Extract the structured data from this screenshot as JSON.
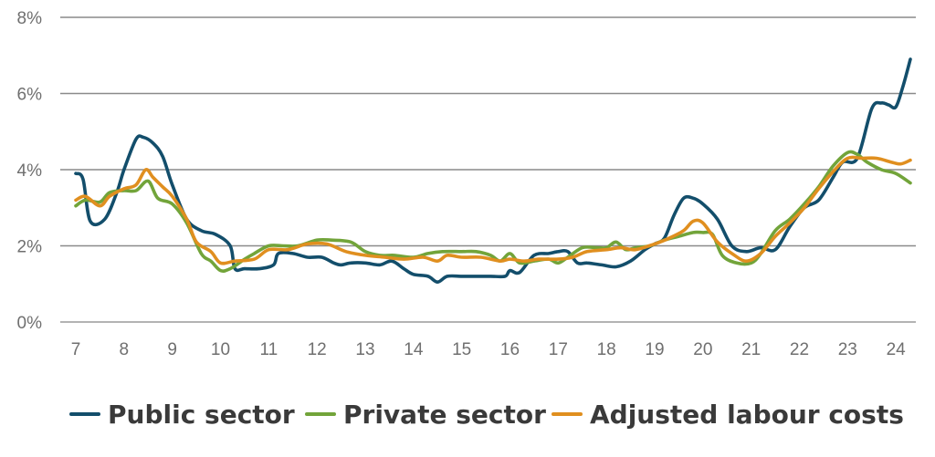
{
  "chart_data": {
    "type": "line",
    "xlabel": "",
    "ylabel": "",
    "xlim": [
      7,
      24.3
    ],
    "ylim": [
      0,
      8
    ],
    "x_ticks": [
      7,
      8,
      9,
      10,
      11,
      12,
      13,
      14,
      15,
      16,
      17,
      18,
      19,
      20,
      21,
      22,
      23,
      24
    ],
    "x_tick_labels": [
      "7",
      "8",
      "9",
      "10",
      "11",
      "12",
      "13",
      "14",
      "15",
      "16",
      "17",
      "18",
      "19",
      "20",
      "21",
      "22",
      "23",
      "24"
    ],
    "y_ticks": [
      0,
      2,
      4,
      6,
      8
    ],
    "y_tick_labels": [
      "0%",
      "2%",
      "4%",
      "6%",
      "8%"
    ],
    "grid": "horizontal",
    "legend_position": "bottom",
    "series": [
      {
        "name": "Public sector",
        "color": "#134e6b",
        "points": [
          [
            7.0,
            3.9
          ],
          [
            7.15,
            3.75
          ],
          [
            7.3,
            2.65
          ],
          [
            7.6,
            2.7
          ],
          [
            7.85,
            3.4
          ],
          [
            8.0,
            4.0
          ],
          [
            8.25,
            4.8
          ],
          [
            8.4,
            4.85
          ],
          [
            8.6,
            4.7
          ],
          [
            8.8,
            4.35
          ],
          [
            9.0,
            3.6
          ],
          [
            9.3,
            2.7
          ],
          [
            9.6,
            2.4
          ],
          [
            9.9,
            2.3
          ],
          [
            10.2,
            2.0
          ],
          [
            10.3,
            1.4
          ],
          [
            10.5,
            1.4
          ],
          [
            10.8,
            1.4
          ],
          [
            11.1,
            1.5
          ],
          [
            11.2,
            1.8
          ],
          [
            11.5,
            1.8
          ],
          [
            11.8,
            1.7
          ],
          [
            12.1,
            1.7
          ],
          [
            12.35,
            1.55
          ],
          [
            12.5,
            1.5
          ],
          [
            12.7,
            1.55
          ],
          [
            13.0,
            1.55
          ],
          [
            13.3,
            1.5
          ],
          [
            13.55,
            1.6
          ],
          [
            13.8,
            1.4
          ],
          [
            14.0,
            1.25
          ],
          [
            14.3,
            1.2
          ],
          [
            14.5,
            1.05
          ],
          [
            14.7,
            1.2
          ],
          [
            15.0,
            1.2
          ],
          [
            15.3,
            1.2
          ],
          [
            15.6,
            1.2
          ],
          [
            15.9,
            1.2
          ],
          [
            16.0,
            1.35
          ],
          [
            16.2,
            1.3
          ],
          [
            16.5,
            1.75
          ],
          [
            16.8,
            1.8
          ],
          [
            17.0,
            1.85
          ],
          [
            17.2,
            1.85
          ],
          [
            17.4,
            1.55
          ],
          [
            17.6,
            1.55
          ],
          [
            17.9,
            1.5
          ],
          [
            18.2,
            1.45
          ],
          [
            18.5,
            1.6
          ],
          [
            18.8,
            1.9
          ],
          [
            19.0,
            2.05
          ],
          [
            19.2,
            2.2
          ],
          [
            19.4,
            2.8
          ],
          [
            19.6,
            3.25
          ],
          [
            19.8,
            3.25
          ],
          [
            20.0,
            3.1
          ],
          [
            20.3,
            2.7
          ],
          [
            20.6,
            2.0
          ],
          [
            20.9,
            1.85
          ],
          [
            21.2,
            1.95
          ],
          [
            21.5,
            1.9
          ],
          [
            21.8,
            2.5
          ],
          [
            22.1,
            3.0
          ],
          [
            22.4,
            3.2
          ],
          [
            22.7,
            3.8
          ],
          [
            22.9,
            4.2
          ],
          [
            23.2,
            4.3
          ],
          [
            23.5,
            5.6
          ],
          [
            23.7,
            5.75
          ],
          [
            23.85,
            5.7
          ],
          [
            24.0,
            5.65
          ],
          [
            24.15,
            6.2
          ],
          [
            24.3,
            6.9
          ]
        ]
      },
      {
        "name": "Private sector",
        "color": "#72a43a",
        "points": [
          [
            7.0,
            3.05
          ],
          [
            7.2,
            3.2
          ],
          [
            7.5,
            3.15
          ],
          [
            7.7,
            3.4
          ],
          [
            8.0,
            3.45
          ],
          [
            8.25,
            3.45
          ],
          [
            8.5,
            3.7
          ],
          [
            8.7,
            3.25
          ],
          [
            9.0,
            3.1
          ],
          [
            9.3,
            2.6
          ],
          [
            9.6,
            1.8
          ],
          [
            9.8,
            1.6
          ],
          [
            10.0,
            1.35
          ],
          [
            10.2,
            1.4
          ],
          [
            10.5,
            1.65
          ],
          [
            10.7,
            1.8
          ],
          [
            11.0,
            2.0
          ],
          [
            11.3,
            2.0
          ],
          [
            11.6,
            2.0
          ],
          [
            12.0,
            2.15
          ],
          [
            12.3,
            2.15
          ],
          [
            12.7,
            2.1
          ],
          [
            13.0,
            1.85
          ],
          [
            13.3,
            1.75
          ],
          [
            13.6,
            1.75
          ],
          [
            14.0,
            1.7
          ],
          [
            14.3,
            1.8
          ],
          [
            14.6,
            1.85
          ],
          [
            15.0,
            1.85
          ],
          [
            15.3,
            1.85
          ],
          [
            15.6,
            1.75
          ],
          [
            15.8,
            1.6
          ],
          [
            16.0,
            1.8
          ],
          [
            16.2,
            1.55
          ],
          [
            16.5,
            1.6
          ],
          [
            16.8,
            1.65
          ],
          [
            17.0,
            1.55
          ],
          [
            17.2,
            1.7
          ],
          [
            17.5,
            1.95
          ],
          [
            17.8,
            1.95
          ],
          [
            18.0,
            1.95
          ],
          [
            18.2,
            2.1
          ],
          [
            18.4,
            1.9
          ],
          [
            18.6,
            1.95
          ],
          [
            18.9,
            2.0
          ],
          [
            19.2,
            2.15
          ],
          [
            19.5,
            2.25
          ],
          [
            19.8,
            2.35
          ],
          [
            20.0,
            2.35
          ],
          [
            20.2,
            2.3
          ],
          [
            20.4,
            1.75
          ],
          [
            20.7,
            1.55
          ],
          [
            21.0,
            1.55
          ],
          [
            21.2,
            1.8
          ],
          [
            21.5,
            2.4
          ],
          [
            21.8,
            2.7
          ],
          [
            22.1,
            3.1
          ],
          [
            22.4,
            3.55
          ],
          [
            22.7,
            4.1
          ],
          [
            23.0,
            4.45
          ],
          [
            23.2,
            4.4
          ],
          [
            23.4,
            4.2
          ],
          [
            23.7,
            4.0
          ],
          [
            24.0,
            3.9
          ],
          [
            24.3,
            3.65
          ]
        ]
      },
      {
        "name": "Adjusted labour costs",
        "color": "#e08f1f",
        "points": [
          [
            7.0,
            3.2
          ],
          [
            7.2,
            3.3
          ],
          [
            7.5,
            3.05
          ],
          [
            7.7,
            3.3
          ],
          [
            8.0,
            3.5
          ],
          [
            8.25,
            3.6
          ],
          [
            8.45,
            4.0
          ],
          [
            8.6,
            3.8
          ],
          [
            8.8,
            3.55
          ],
          [
            9.0,
            3.3
          ],
          [
            9.3,
            2.7
          ],
          [
            9.5,
            2.1
          ],
          [
            9.8,
            1.85
          ],
          [
            10.0,
            1.55
          ],
          [
            10.3,
            1.6
          ],
          [
            10.7,
            1.65
          ],
          [
            11.0,
            1.9
          ],
          [
            11.4,
            1.9
          ],
          [
            11.8,
            2.05
          ],
          [
            12.2,
            2.05
          ],
          [
            12.6,
            1.85
          ],
          [
            13.0,
            1.75
          ],
          [
            13.4,
            1.7
          ],
          [
            13.8,
            1.65
          ],
          [
            14.2,
            1.7
          ],
          [
            14.5,
            1.6
          ],
          [
            14.7,
            1.75
          ],
          [
            15.0,
            1.7
          ],
          [
            15.4,
            1.7
          ],
          [
            15.8,
            1.6
          ],
          [
            16.0,
            1.65
          ],
          [
            16.3,
            1.6
          ],
          [
            16.6,
            1.65
          ],
          [
            17.0,
            1.65
          ],
          [
            17.3,
            1.7
          ],
          [
            17.6,
            1.85
          ],
          [
            18.0,
            1.9
          ],
          [
            18.3,
            1.95
          ],
          [
            18.6,
            1.9
          ],
          [
            19.0,
            2.05
          ],
          [
            19.3,
            2.2
          ],
          [
            19.6,
            2.4
          ],
          [
            19.8,
            2.65
          ],
          [
            20.0,
            2.6
          ],
          [
            20.3,
            2.1
          ],
          [
            20.6,
            1.8
          ],
          [
            20.9,
            1.6
          ],
          [
            21.2,
            1.8
          ],
          [
            21.5,
            2.25
          ],
          [
            21.8,
            2.6
          ],
          [
            22.1,
            3.0
          ],
          [
            22.4,
            3.5
          ],
          [
            22.7,
            3.95
          ],
          [
            23.0,
            4.3
          ],
          [
            23.3,
            4.3
          ],
          [
            23.6,
            4.3
          ],
          [
            23.9,
            4.2
          ],
          [
            24.1,
            4.15
          ],
          [
            24.3,
            4.25
          ]
        ]
      }
    ]
  }
}
